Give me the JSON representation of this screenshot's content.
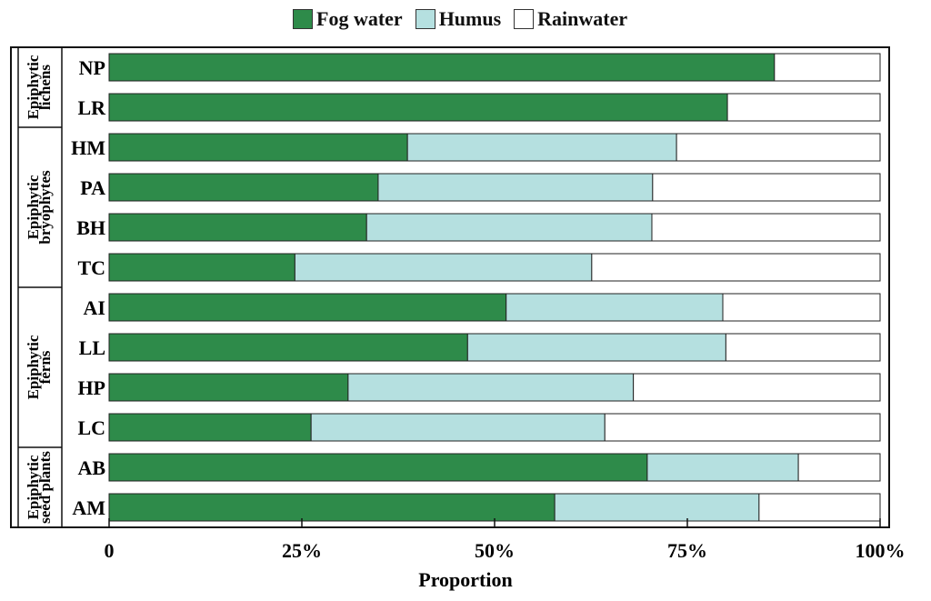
{
  "chart_data": {
    "type": "bar",
    "orientation": "horizontal",
    "stacked": true,
    "title": "",
    "xlabel": "Proportion",
    "ylabel": "",
    "xlim": [
      0,
      100
    ],
    "x_ticks": [
      "0",
      "25%",
      "50%",
      "75%",
      "100%"
    ],
    "x_tick_values": [
      0,
      25,
      50,
      75,
      100
    ],
    "legend_position": "top-center",
    "categories": [
      "NP",
      "LR",
      "HM",
      "PA",
      "BH",
      "TC",
      "AI",
      "LL",
      "HP",
      "LC",
      "AB",
      "AM"
    ],
    "groups": [
      {
        "label_line1": "Epiphytic",
        "label_line2": "lichens",
        "members": [
          "NP",
          "LR"
        ]
      },
      {
        "label_line1": "Epiphytic",
        "label_line2": "bryophytes",
        "members": [
          "HM",
          "PA",
          "BH",
          "TC"
        ]
      },
      {
        "label_line1": "Epiphytic",
        "label_line2": "ferns",
        "members": [
          "AI",
          "LL",
          "HP",
          "LC"
        ]
      },
      {
        "label_line1": "Epiphytic",
        "label_line2": "seed plants",
        "members": [
          "AB",
          "AM"
        ]
      }
    ],
    "series": [
      {
        "name": "Fog water",
        "color": "#2e8b4a",
        "values": [
          86.3,
          80.2,
          38.7,
          34.9,
          33.4,
          24.1,
          51.5,
          46.5,
          31.0,
          26.2,
          69.8,
          57.8
        ]
      },
      {
        "name": "Humus",
        "color": "#b5e0e0",
        "values": [
          0,
          0,
          34.9,
          35.6,
          37.0,
          38.5,
          28.1,
          33.5,
          37.0,
          38.1,
          19.6,
          26.5
        ]
      },
      {
        "name": "Rainwater",
        "color": "#ffffff",
        "values": [
          13.7,
          19.8,
          26.4,
          29.5,
          29.6,
          37.4,
          20.4,
          20.0,
          32.0,
          35.7,
          10.6,
          15.7
        ]
      }
    ]
  }
}
